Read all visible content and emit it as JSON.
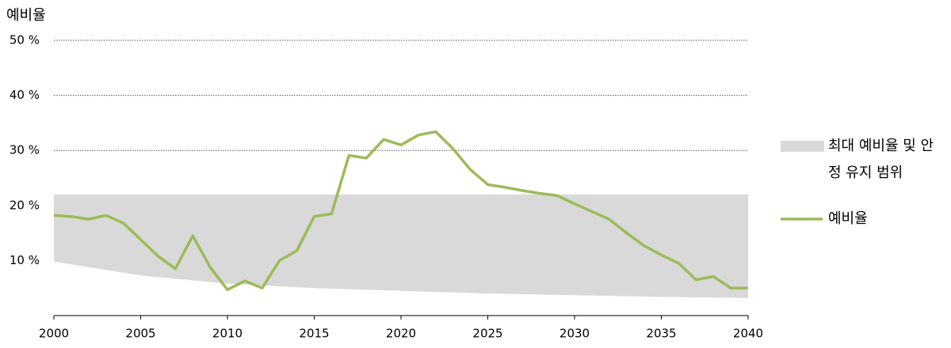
{
  "chart_data": {
    "type": "line",
    "ylabel": "예비율",
    "x": [
      2000,
      2001,
      2002,
      2003,
      2004,
      2005,
      2006,
      2007,
      2008,
      2009,
      2010,
      2011,
      2012,
      2013,
      2014,
      2015,
      2016,
      2017,
      2018,
      2019,
      2020,
      2021,
      2022,
      2023,
      2024,
      2025,
      2026,
      2027,
      2028,
      2029,
      2030,
      2031,
      2032,
      2033,
      2034,
      2035,
      2036,
      2037,
      2038,
      2039,
      2040
    ],
    "series": [
      {
        "name": "예비율",
        "color": "#9bbb59",
        "values": [
          18.2,
          18.0,
          17.5,
          18.2,
          16.8,
          13.8,
          10.8,
          8.5,
          14.5,
          8.8,
          4.7,
          6.3,
          5.0,
          10.0,
          11.8,
          18.0,
          18.5,
          29.1,
          28.6,
          32.0,
          31.0,
          32.8,
          33.4,
          30.3,
          26.5,
          23.8,
          23.3,
          22.7,
          22.2,
          21.8,
          20.3,
          18.9,
          17.5,
          15.0,
          12.7,
          11.0,
          9.5,
          6.5,
          7.1,
          5.0,
          5.0
        ]
      }
    ],
    "band": {
      "name": "최대 예비율 및 안정 유지 범위",
      "color": "#d9d9d9",
      "x": [
        2000,
        2005,
        2010,
        2015,
        2020,
        2025,
        2030,
        2035,
        2040
      ],
      "lower": [
        9.8,
        7.3,
        5.8,
        5.0,
        4.5,
        4.0,
        3.7,
        3.4,
        3.2
      ],
      "upper": [
        22,
        22,
        22,
        22,
        22,
        22,
        22,
        22,
        22
      ]
    },
    "xlim": [
      2000,
      2040
    ],
    "xticks": [
      2000,
      2005,
      2010,
      2015,
      2020,
      2025,
      2030,
      2035,
      2040
    ],
    "ylim": [
      0,
      50
    ],
    "yticks": [
      {
        "value": 10,
        "label": "10 %"
      },
      {
        "value": 20,
        "label": "20 %"
      },
      {
        "value": 30,
        "label": "30 %"
      },
      {
        "value": 40,
        "label": "40 %"
      },
      {
        "value": 50,
        "label": "50 %"
      }
    ],
    "grid": true,
    "legend": "right"
  }
}
